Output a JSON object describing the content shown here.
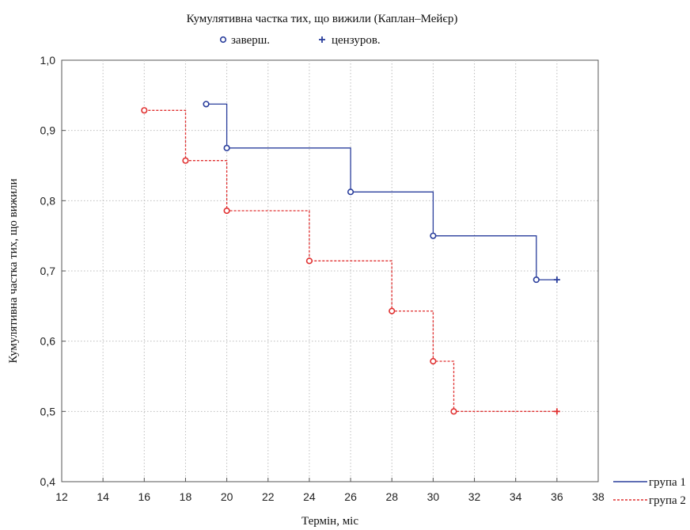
{
  "chart_data": {
    "type": "line",
    "subtype": "step",
    "title": "Кумулятивна частка тих, що вижили (Каплан–Мейєр)",
    "xlabel": "Термін, міс",
    "ylabel": "Кумулятивна частка тих, що вижили",
    "xlim": [
      12,
      38
    ],
    "ylim": [
      0.4,
      1.0
    ],
    "xticks": [
      12,
      14,
      16,
      18,
      20,
      22,
      24,
      26,
      28,
      30,
      32,
      34,
      36,
      38
    ],
    "xtick_labels": [
      "12",
      "14",
      "16",
      "18",
      "20",
      "22",
      "24",
      "26",
      "28",
      "30",
      "32",
      "34",
      "36",
      "38"
    ],
    "yticks": [
      0.4,
      0.5,
      0.6,
      0.7,
      0.8,
      0.9,
      1.0
    ],
    "ytick_labels": [
      "0,4",
      "0,5",
      "0,6",
      "0,7",
      "0,8",
      "0,9",
      "1,0"
    ],
    "grid": true,
    "marker_legend": {
      "completed": "заверш.",
      "censored": "цензуров."
    },
    "series": [
      {
        "name": "група 1",
        "color": "#2a3e9c",
        "line_style": "solid",
        "start_x": 19,
        "start_y": 0.9375,
        "events": [
          {
            "x": 19,
            "y": 0.9375
          },
          {
            "x": 20,
            "y": 0.875
          },
          {
            "x": 26,
            "y": 0.8125
          },
          {
            "x": 30,
            "y": 0.75
          },
          {
            "x": 35,
            "y": 0.6875
          }
        ],
        "censored": [
          {
            "x": 36,
            "y": 0.6875
          }
        ]
      },
      {
        "name": "група 2",
        "color": "#e03030",
        "line_style": "dashed",
        "start_x": 16,
        "start_y": 0.9286,
        "events": [
          {
            "x": 16,
            "y": 0.9286
          },
          {
            "x": 18,
            "y": 0.8571
          },
          {
            "x": 20,
            "y": 0.7857
          },
          {
            "x": 24,
            "y": 0.7143
          },
          {
            "x": 28,
            "y": 0.6429
          },
          {
            "x": 30,
            "y": 0.5714
          },
          {
            "x": 31,
            "y": 0.5
          }
        ],
        "censored": [
          {
            "x": 36,
            "y": 0.5
          }
        ]
      }
    ]
  }
}
